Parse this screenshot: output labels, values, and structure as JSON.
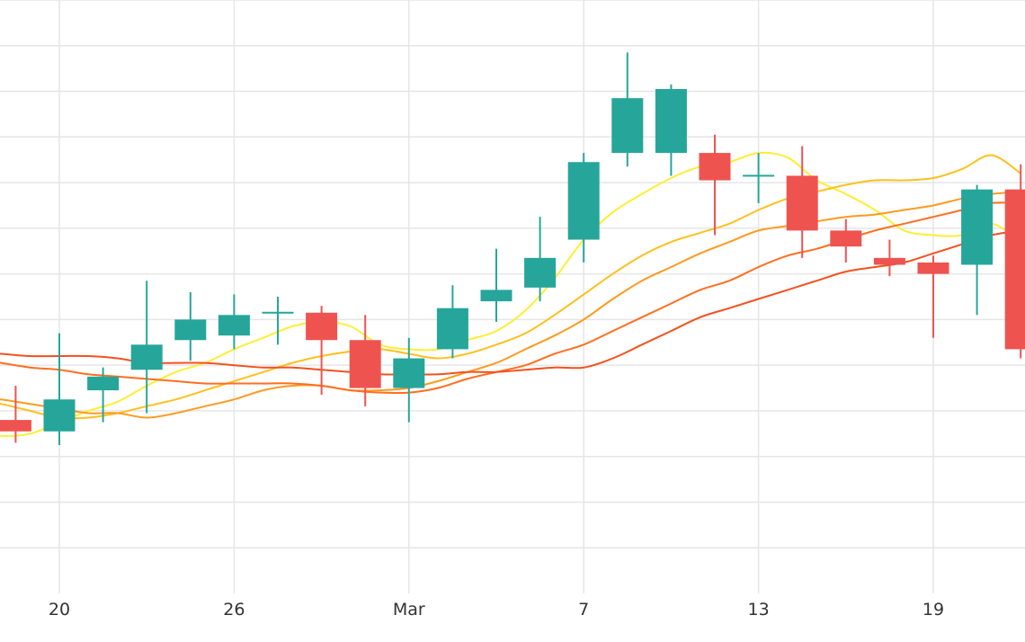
{
  "chart_data": {
    "type": "candlestick",
    "x_tick_labels": [
      {
        "day": 1,
        "label": "20"
      },
      {
        "day": 7,
        "label": "26"
      },
      {
        "day": 13,
        "label": "Mar"
      },
      {
        "day": 19,
        "label": "7"
      },
      {
        "day": 25,
        "label": "13"
      },
      {
        "day": 31,
        "label": "19"
      }
    ],
    "grid": true,
    "ylim": [
      0,
      13
    ],
    "colors": {
      "up": "#26a69a",
      "down": "#ef5350",
      "grid": "#e6e6e6",
      "ma": [
        "#ffee33",
        "#ffc01e",
        "#ff9a1f",
        "#ff6f1f",
        "#f4511e"
      ]
    },
    "candles": [
      {
        "day": -0.5,
        "open": 3.8,
        "close": 3.55,
        "high": 4.55,
        "low": 3.3
      },
      {
        "day": 1.0,
        "open": 3.55,
        "close": 4.25,
        "high": 5.7,
        "low": 3.25
      },
      {
        "day": 2.5,
        "open": 4.45,
        "close": 4.75,
        "high": 4.95,
        "low": 3.75
      },
      {
        "day": 4.0,
        "open": 4.9,
        "close": 5.45,
        "high": 6.85,
        "low": 3.95
      },
      {
        "day": 5.5,
        "open": 5.55,
        "close": 6.0,
        "high": 6.6,
        "low": 5.1
      },
      {
        "day": 7.0,
        "open": 5.65,
        "close": 6.1,
        "high": 6.55,
        "low": 5.35
      },
      {
        "day": 8.5,
        "open": 6.15,
        "close": 6.15,
        "high": 6.5,
        "low": 5.45
      },
      {
        "day": 10.0,
        "open": 6.15,
        "close": 5.55,
        "high": 6.3,
        "low": 4.35
      },
      {
        "day": 11.5,
        "open": 5.55,
        "close": 4.5,
        "high": 6.1,
        "low": 4.1
      },
      {
        "day": 13.0,
        "open": 4.5,
        "close": 5.15,
        "high": 5.6,
        "low": 3.75
      },
      {
        "day": 14.5,
        "open": 5.35,
        "close": 6.25,
        "high": 6.75,
        "low": 5.15
      },
      {
        "day": 16.0,
        "open": 6.4,
        "close": 6.65,
        "high": 7.55,
        "low": 5.95
      },
      {
        "day": 17.5,
        "open": 6.7,
        "close": 7.35,
        "high": 8.25,
        "low": 6.4
      },
      {
        "day": 19.0,
        "open": 7.75,
        "close": 9.45,
        "high": 9.65,
        "low": 7.25
      },
      {
        "day": 20.5,
        "open": 9.65,
        "close": 10.85,
        "high": 11.85,
        "low": 9.35
      },
      {
        "day": 22.0,
        "open": 9.65,
        "close": 11.05,
        "high": 11.15,
        "low": 9.15
      },
      {
        "day": 23.5,
        "open": 9.65,
        "close": 9.05,
        "high": 10.05,
        "low": 7.85
      },
      {
        "day": 25.0,
        "open": 9.15,
        "close": 9.15,
        "high": 9.65,
        "low": 8.55
      },
      {
        "day": 26.5,
        "open": 9.15,
        "close": 7.95,
        "high": 9.8,
        "low": 7.35
      },
      {
        "day": 28.0,
        "open": 7.95,
        "close": 7.6,
        "high": 8.2,
        "low": 7.25
      },
      {
        "day": 29.5,
        "open": 7.35,
        "close": 7.2,
        "high": 7.75,
        "low": 6.95
      },
      {
        "day": 31.0,
        "open": 7.25,
        "close": 7.0,
        "high": 7.4,
        "low": 5.6
      },
      {
        "day": 32.5,
        "open": 7.2,
        "close": 8.85,
        "high": 8.95,
        "low": 6.1
      },
      {
        "day": 34.0,
        "open": 8.85,
        "close": 5.35,
        "high": 9.4,
        "low": 5.15
      }
    ],
    "moving_averages": [
      {
        "points": [
          [
            -2,
            3.55
          ],
          [
            -1,
            3.45
          ],
          [
            0,
            3.5
          ],
          [
            1,
            3.75
          ],
          [
            2,
            4.0
          ],
          [
            3,
            4.2
          ],
          [
            4,
            4.55
          ],
          [
            5,
            4.85
          ],
          [
            6,
            5.05
          ],
          [
            7,
            5.35
          ],
          [
            8,
            5.6
          ],
          [
            9,
            5.85
          ],
          [
            10,
            5.95
          ],
          [
            11,
            5.85
          ],
          [
            12,
            5.45
          ],
          [
            13,
            5.35
          ],
          [
            14,
            5.35
          ],
          [
            15,
            5.55
          ],
          [
            16,
            5.75
          ],
          [
            17,
            6.2
          ],
          [
            18,
            6.9
          ],
          [
            19,
            7.75
          ],
          [
            20,
            8.35
          ],
          [
            21,
            8.75
          ],
          [
            22,
            9.1
          ],
          [
            23,
            9.35
          ],
          [
            24,
            9.45
          ],
          [
            25,
            9.65
          ],
          [
            26,
            9.55
          ],
          [
            27,
            9.05
          ],
          [
            28,
            8.75
          ],
          [
            29,
            8.4
          ],
          [
            30,
            7.95
          ],
          [
            31,
            7.85
          ],
          [
            32,
            7.85
          ],
          [
            33,
            8.1
          ],
          [
            34,
            7.7
          ]
        ]
      },
      {
        "points": [
          [
            -2,
            4.25
          ],
          [
            -1,
            4.15
          ],
          [
            0,
            4.0
          ],
          [
            1,
            3.85
          ],
          [
            2,
            3.85
          ],
          [
            3,
            3.95
          ],
          [
            4,
            4.1
          ],
          [
            5,
            4.25
          ],
          [
            6,
            4.45
          ],
          [
            7,
            4.65
          ],
          [
            8,
            4.85
          ],
          [
            9,
            5.05
          ],
          [
            10,
            5.2
          ],
          [
            11,
            5.3
          ],
          [
            12,
            5.35
          ],
          [
            13,
            5.25
          ],
          [
            14,
            5.15
          ],
          [
            15,
            5.25
          ],
          [
            16,
            5.45
          ],
          [
            17,
            5.7
          ],
          [
            18,
            6.1
          ],
          [
            19,
            6.55
          ],
          [
            20,
            7.0
          ],
          [
            21,
            7.4
          ],
          [
            22,
            7.7
          ],
          [
            23,
            7.9
          ],
          [
            24,
            8.1
          ],
          [
            25,
            8.4
          ],
          [
            26,
            8.65
          ],
          [
            27,
            8.8
          ],
          [
            28,
            8.95
          ],
          [
            29,
            9.05
          ],
          [
            30,
            9.05
          ],
          [
            31,
            9.1
          ],
          [
            32,
            9.3
          ],
          [
            33,
            9.6
          ],
          [
            34,
            9.2
          ]
        ]
      },
      {
        "points": [
          [
            -2,
            4.3
          ],
          [
            -1,
            4.25
          ],
          [
            0,
            4.15
          ],
          [
            1,
            4.05
          ],
          [
            2,
            3.95
          ],
          [
            3,
            3.95
          ],
          [
            4,
            3.85
          ],
          [
            5,
            3.95
          ],
          [
            6,
            4.1
          ],
          [
            7,
            4.25
          ],
          [
            8,
            4.45
          ],
          [
            9,
            4.55
          ],
          [
            10,
            4.55
          ],
          [
            11,
            4.45
          ],
          [
            12,
            4.45
          ],
          [
            13,
            4.5
          ],
          [
            14,
            4.65
          ],
          [
            15,
            4.85
          ],
          [
            16,
            5.05
          ],
          [
            17,
            5.35
          ],
          [
            18,
            5.65
          ],
          [
            19,
            6.0
          ],
          [
            20,
            6.45
          ],
          [
            21,
            6.85
          ],
          [
            22,
            7.15
          ],
          [
            23,
            7.45
          ],
          [
            24,
            7.7
          ],
          [
            25,
            7.95
          ],
          [
            26,
            8.05
          ],
          [
            27,
            8.15
          ],
          [
            28,
            8.25
          ],
          [
            29,
            8.3
          ],
          [
            30,
            8.4
          ],
          [
            31,
            8.5
          ],
          [
            32,
            8.65
          ],
          [
            33,
            8.75
          ],
          [
            34,
            8.8
          ]
        ]
      },
      {
        "points": [
          [
            -2,
            5.15
          ],
          [
            -1,
            5.05
          ],
          [
            0,
            4.95
          ],
          [
            1,
            4.9
          ],
          [
            2,
            4.8
          ],
          [
            3,
            4.75
          ],
          [
            4,
            4.7
          ],
          [
            5,
            4.65
          ],
          [
            6,
            4.6
          ],
          [
            7,
            4.6
          ],
          [
            8,
            4.6
          ],
          [
            9,
            4.6
          ],
          [
            10,
            4.55
          ],
          [
            11,
            4.45
          ],
          [
            12,
            4.4
          ],
          [
            13,
            4.4
          ],
          [
            14,
            4.5
          ],
          [
            15,
            4.7
          ],
          [
            16,
            4.85
          ],
          [
            17,
            5.0
          ],
          [
            18,
            5.25
          ],
          [
            19,
            5.45
          ],
          [
            20,
            5.75
          ],
          [
            21,
            6.05
          ],
          [
            22,
            6.35
          ],
          [
            23,
            6.65
          ],
          [
            24,
            6.85
          ],
          [
            25,
            7.15
          ],
          [
            26,
            7.4
          ],
          [
            27,
            7.55
          ],
          [
            28,
            7.75
          ],
          [
            29,
            7.95
          ],
          [
            30,
            8.1
          ],
          [
            31,
            8.25
          ],
          [
            32,
            8.4
          ],
          [
            33,
            8.55
          ],
          [
            34,
            8.55
          ]
        ]
      },
      {
        "points": [
          [
            -2,
            5.3
          ],
          [
            -1,
            5.25
          ],
          [
            0,
            5.2
          ],
          [
            1,
            5.2
          ],
          [
            2,
            5.2
          ],
          [
            3,
            5.15
          ],
          [
            4,
            5.05
          ],
          [
            5,
            5.05
          ],
          [
            6,
            5.05
          ],
          [
            7,
            5.0
          ],
          [
            8,
            4.95
          ],
          [
            9,
            4.95
          ],
          [
            10,
            4.9
          ],
          [
            11,
            4.85
          ],
          [
            12,
            4.8
          ],
          [
            13,
            4.8
          ],
          [
            14,
            4.8
          ],
          [
            15,
            4.85
          ],
          [
            16,
            4.85
          ],
          [
            17,
            4.9
          ],
          [
            18,
            4.95
          ],
          [
            19,
            4.95
          ],
          [
            20,
            5.15
          ],
          [
            21,
            5.45
          ],
          [
            22,
            5.75
          ],
          [
            23,
            6.05
          ],
          [
            24,
            6.25
          ],
          [
            25,
            6.45
          ],
          [
            26,
            6.65
          ],
          [
            27,
            6.85
          ],
          [
            28,
            7.05
          ],
          [
            29,
            7.15
          ],
          [
            30,
            7.25
          ],
          [
            31,
            7.45
          ],
          [
            32,
            7.65
          ],
          [
            33,
            7.85
          ],
          [
            34,
            7.95
          ]
        ]
      }
    ]
  }
}
